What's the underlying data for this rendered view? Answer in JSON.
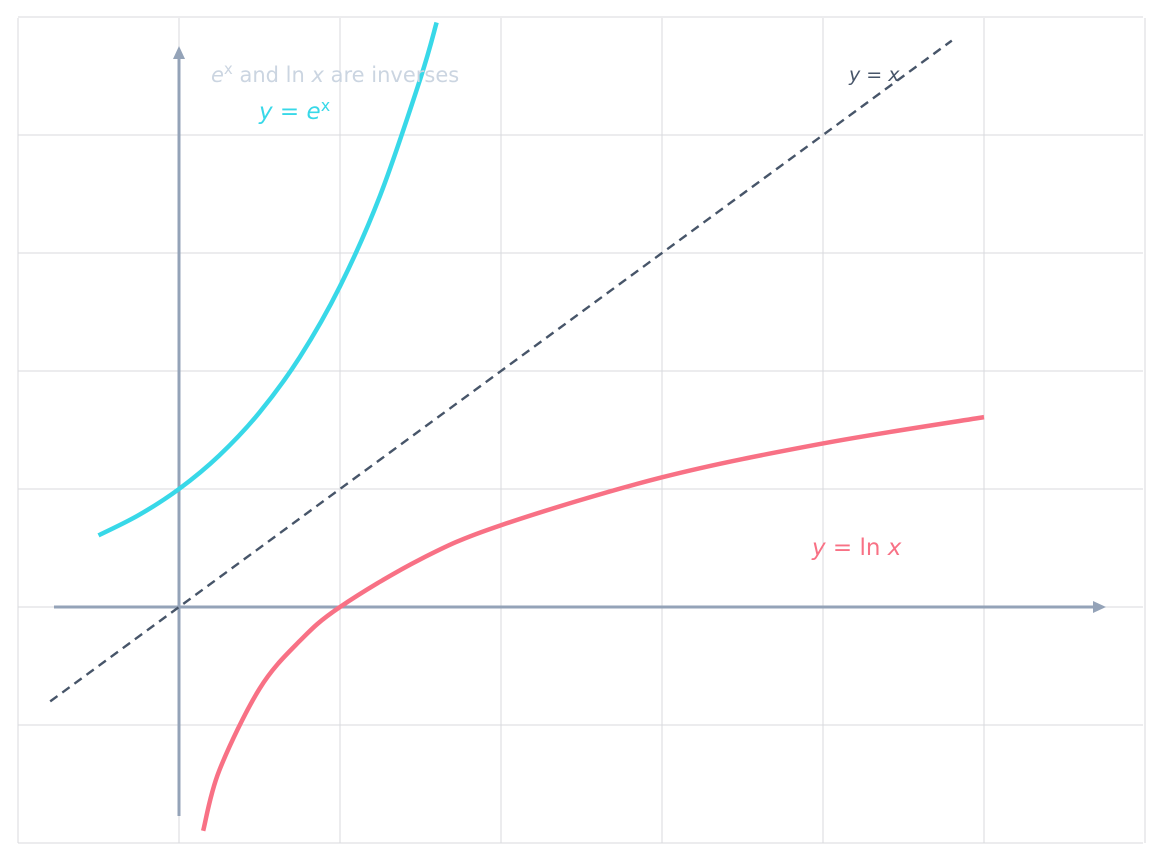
{
  "chart_data": {
    "type": "line",
    "title": "",
    "xlabel": "",
    "ylabel": "",
    "xlim": [
      -1.0,
      6.0
    ],
    "ylim": [
      -2.0,
      5.0
    ],
    "grid": true,
    "axes": {
      "x_arrow": true,
      "y_arrow": true
    },
    "annotations": [
      {
        "text_parts": [
          "e",
          "x",
          " and ln ",
          "x",
          " are inverses"
        ],
        "color": "#cbd5e1",
        "anchor": "top-left"
      }
    ],
    "series": [
      {
        "name": "y = e^x",
        "label_parts": [
          "y",
          " = ",
          "e",
          "x"
        ],
        "color": "#38d8e8",
        "style": "solid",
        "x": [
          -0.5,
          -0.25,
          0.0,
          0.25,
          0.5,
          0.75,
          1.0,
          1.25,
          1.5,
          1.6
        ],
        "y": [
          0.607,
          0.779,
          1.0,
          1.284,
          1.649,
          2.117,
          2.718,
          3.49,
          4.482,
          4.953
        ]
      },
      {
        "name": "y = x",
        "label_parts": [
          "y",
          " = ",
          "x"
        ],
        "color": "#475569",
        "style": "dashed",
        "x": [
          -0.8,
          4.8
        ],
        "y": [
          -0.8,
          4.8
        ]
      },
      {
        "name": "y = ln x",
        "label_parts": [
          "y",
          " = ln ",
          "x"
        ],
        "color": "#f87185",
        "style": "solid",
        "x": [
          0.15,
          0.25,
          0.5,
          0.75,
          1.0,
          1.5,
          2.0,
          3.0,
          4.0,
          5.0
        ],
        "y": [
          -1.897,
          -1.386,
          -0.693,
          -0.288,
          0.0,
          0.405,
          0.693,
          1.099,
          1.386,
          1.609
        ]
      }
    ]
  }
}
